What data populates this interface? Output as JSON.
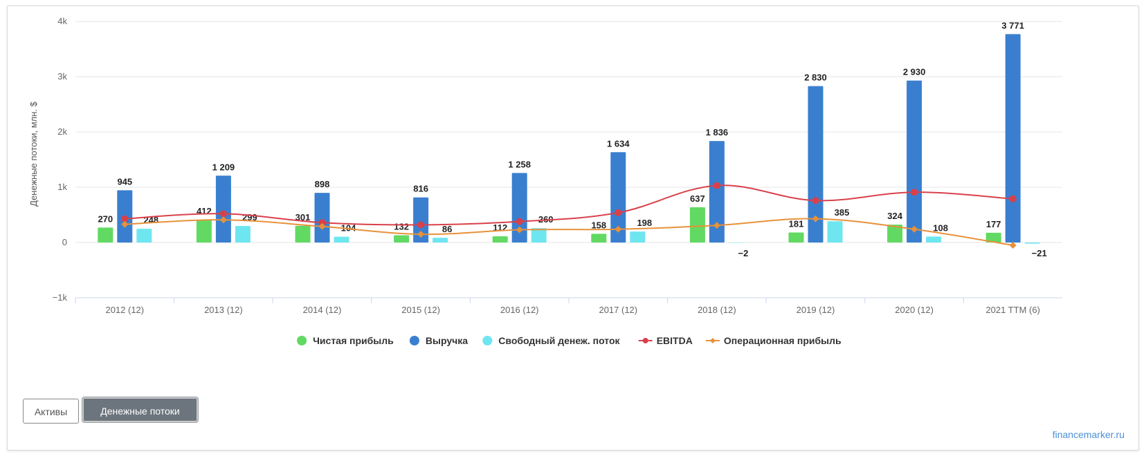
{
  "ui": {
    "buttons": {
      "assets": "Активы",
      "cashflows": "Денежные потоки"
    },
    "brand": "financemarker.ru"
  },
  "chart_data": {
    "type": "bar",
    "title": "",
    "xlabel": "",
    "ylabel": "Денежные потоки, млн. $",
    "ylim": [
      -1000,
      4000
    ],
    "yticks": [
      -1000,
      0,
      1000,
      2000,
      3000,
      4000
    ],
    "ytick_labels": [
      "−1k",
      "0",
      "1k",
      "2k",
      "3k",
      "4k"
    ],
    "grid": true,
    "legend_position": "bottom-center",
    "categories": [
      "2012 (12)",
      "2013 (12)",
      "2014 (12)",
      "2015 (12)",
      "2016 (12)",
      "2017 (12)",
      "2018 (12)",
      "2019 (12)",
      "2020 (12)",
      "2021 TTM (6)"
    ],
    "series": [
      {
        "name": "Чистая прибыль",
        "kind": "bar",
        "color": "#62d962",
        "values": [
          270,
          412,
          301,
          132,
          112,
          158,
          637,
          181,
          324,
          177
        ],
        "labels": [
          "270",
          "412",
          "301",
          "132",
          "112",
          "158",
          "637",
          "181",
          "324",
          "177"
        ]
      },
      {
        "name": "Выручка",
        "kind": "bar",
        "color": "#3a7fcf",
        "values": [
          945,
          1209,
          898,
          816,
          1258,
          1634,
          1836,
          2830,
          2930,
          3771
        ],
        "labels": [
          "945",
          "1 209",
          "898",
          "816",
          "1 258",
          "1 634",
          "1 836",
          "2 830",
          "2 930",
          "3 771"
        ]
      },
      {
        "name": "Свободный денеж. поток",
        "kind": "bar",
        "color": "#6ee6f0",
        "values": [
          248,
          299,
          104,
          86,
          260,
          198,
          -2,
          385,
          108,
          -21
        ],
        "labels": [
          "248",
          "299",
          "104",
          "86",
          "260",
          "198",
          "−2",
          "385",
          "108",
          "−21"
        ]
      },
      {
        "name": "EBITDA",
        "kind": "line",
        "color": "#d9404a",
        "values": [
          430,
          520,
          360,
          320,
          380,
          540,
          1030,
          760,
          910,
          790
        ]
      },
      {
        "name": "Операционная прибыль",
        "kind": "line",
        "color": "#e8913a",
        "values": [
          330,
          410,
          290,
          150,
          230,
          240,
          310,
          430,
          240,
          -50
        ]
      }
    ]
  }
}
